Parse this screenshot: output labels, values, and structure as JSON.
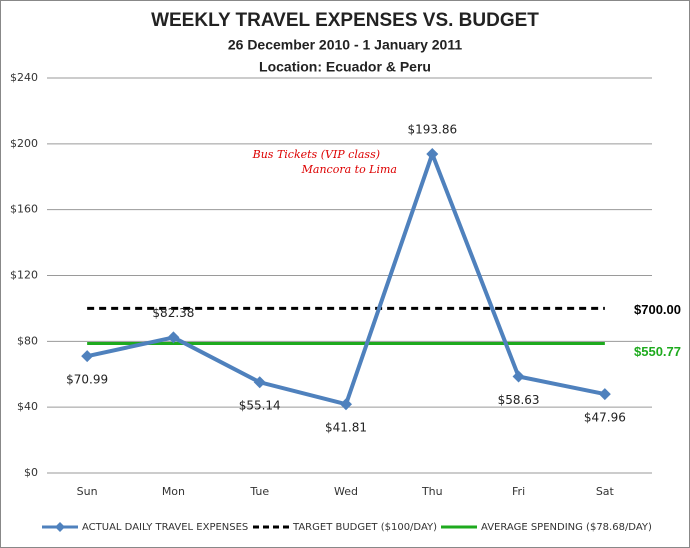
{
  "chart_data": {
    "type": "line",
    "title": "WEEKLY TRAVEL EXPENSES VS. BUDGET",
    "subtitle": "26 December 2010 - 1 January 2011",
    "subtitle2": "Location: Ecuador & Peru",
    "categories": [
      "Sun",
      "Mon",
      "Tue",
      "Wed",
      "Thu",
      "Fri",
      "Sat"
    ],
    "series": [
      {
        "name": "ACTUAL DAILY TRAVEL EXPENSES",
        "color": "#4f81bd",
        "style": "solid",
        "marker": "diamond",
        "values": [
          70.99,
          82.38,
          55.14,
          41.81,
          193.86,
          58.63,
          47.96
        ],
        "value_labels": [
          "$70.99",
          "$82.38",
          "$55.14",
          "$41.81",
          "$193.86",
          "$58.63",
          "$47.96"
        ]
      },
      {
        "name": "TARGET BUDGET ($100/DAY)",
        "color": "#000000",
        "style": "dashed",
        "values": [
          100,
          100,
          100,
          100,
          100,
          100,
          100
        ]
      },
      {
        "name": "AVERAGE SPENDING ($78.68/DAY)",
        "color": "#1eaa1e",
        "style": "solid",
        "values": [
          78.68,
          78.68,
          78.68,
          78.68,
          78.68,
          78.68,
          78.68
        ]
      }
    ],
    "annotations": [
      {
        "text": "$700.00",
        "color": "#000000"
      },
      {
        "text": "$550.77",
        "color": "#1eaa1e"
      },
      {
        "lines": [
          "Bus Tickets (VIP class)",
          "Mancora to Lima"
        ],
        "color": "#dd0000"
      }
    ],
    "ylim": [
      0,
      240
    ],
    "yticks": [
      {
        "value": 0,
        "label": "$0"
      },
      {
        "value": 40,
        "label": "$40"
      },
      {
        "value": 80,
        "label": "$80"
      },
      {
        "value": 120,
        "label": "$120"
      },
      {
        "value": 160,
        "label": "$160"
      },
      {
        "value": 200,
        "label": "$200"
      },
      {
        "value": 240,
        "label": "$240"
      }
    ],
    "grid": true
  }
}
